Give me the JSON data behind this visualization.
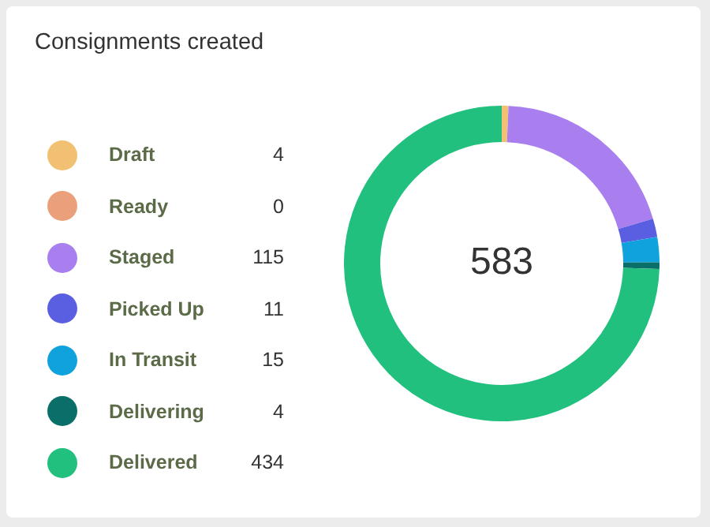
{
  "chart_data": {
    "type": "donut",
    "title": "Consignments created",
    "categories": [
      "Draft",
      "Ready",
      "Staged",
      "Picked Up",
      "In Transit",
      "Delivering",
      "Delivered"
    ],
    "values": [
      4,
      0,
      115,
      11,
      15,
      4,
      434
    ],
    "colors": [
      "#f2c072",
      "#eba07c",
      "#a97ff0",
      "#5a5ee0",
      "#10a2dc",
      "#0b6f69",
      "#21c07e"
    ],
    "value_labels": [
      "4",
      "0",
      "115",
      "11",
      "15",
      "4",
      "434"
    ],
    "legend": "left",
    "annotations": [
      "583"
    ]
  }
}
